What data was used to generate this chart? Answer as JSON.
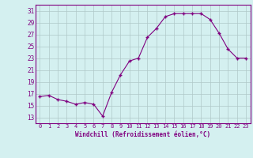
{
  "x": [
    0,
    1,
    2,
    3,
    4,
    5,
    6,
    7,
    8,
    9,
    10,
    11,
    12,
    13,
    14,
    15,
    16,
    17,
    18,
    19,
    20,
    21,
    22,
    23
  ],
  "y": [
    16.5,
    16.7,
    16.0,
    15.7,
    15.2,
    15.5,
    15.2,
    13.2,
    17.2,
    20.2,
    22.5,
    23.0,
    26.5,
    28.0,
    30.0,
    30.5,
    30.5,
    30.5,
    30.5,
    29.5,
    27.2,
    24.5,
    23.0,
    23.0
  ],
  "xlim": [
    -0.5,
    23.5
  ],
  "ylim": [
    12,
    32
  ],
  "yticks": [
    13,
    15,
    17,
    19,
    21,
    23,
    25,
    27,
    29,
    31
  ],
  "xticks": [
    0,
    1,
    2,
    3,
    4,
    5,
    6,
    7,
    8,
    9,
    10,
    11,
    12,
    13,
    14,
    15,
    16,
    17,
    18,
    19,
    20,
    21,
    22,
    23
  ],
  "xlabel": "Windchill (Refroidissement éolien,°C)",
  "line_color": "#800080",
  "marker": "+",
  "bg_color": "#d4f0f0",
  "grid_color": "#b0c8c8",
  "tick_color": "#800080",
  "label_color": "#800080",
  "spine_color": "#800080"
}
